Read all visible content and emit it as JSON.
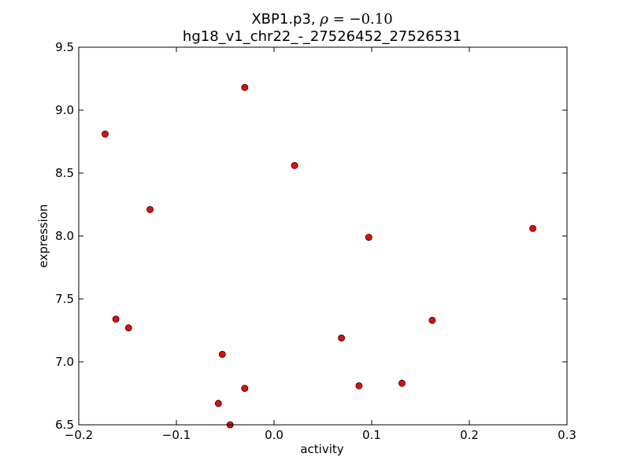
{
  "chart_data": {
    "type": "scatter",
    "title_main": "XBP1.p3, ",
    "title_rho_symbol": "ρ",
    "title_rho_value": " = −0.10",
    "subtitle": "hg18_v1_chr22_-_27526452_27526531",
    "xlabel": "activity",
    "ylabel": "expression",
    "xlim": [
      -0.2,
      0.3
    ],
    "ylim": [
      6.5,
      9.5
    ],
    "xticks": [
      {
        "value": -0.2,
        "label": "−0.2"
      },
      {
        "value": -0.1,
        "label": "−0.1"
      },
      {
        "value": 0.0,
        "label": "0.0"
      },
      {
        "value": 0.1,
        "label": "0.1"
      },
      {
        "value": 0.2,
        "label": "0.2"
      },
      {
        "value": 0.3,
        "label": "0.3"
      }
    ],
    "yticks": [
      {
        "value": 6.5,
        "label": "6.5"
      },
      {
        "value": 7.0,
        "label": "7.0"
      },
      {
        "value": 7.5,
        "label": "7.5"
      },
      {
        "value": 8.0,
        "label": "8.0"
      },
      {
        "value": 8.5,
        "label": "8.5"
      },
      {
        "value": 9.0,
        "label": "9.0"
      },
      {
        "value": 9.5,
        "label": "9.5"
      }
    ],
    "grid": false,
    "marker_color": "#ff0000",
    "marker_edge_color": "#000000",
    "points": [
      {
        "x": -0.173,
        "y": 8.81
      },
      {
        "x": -0.162,
        "y": 7.34
      },
      {
        "x": -0.149,
        "y": 7.27
      },
      {
        "x": -0.127,
        "y": 8.21
      },
      {
        "x": -0.057,
        "y": 6.67
      },
      {
        "x": -0.053,
        "y": 7.06
      },
      {
        "x": -0.045,
        "y": 6.5
      },
      {
        "x": -0.03,
        "y": 9.18
      },
      {
        "x": -0.03,
        "y": 6.79
      },
      {
        "x": 0.021,
        "y": 8.56
      },
      {
        "x": 0.069,
        "y": 7.19
      },
      {
        "x": 0.087,
        "y": 6.81
      },
      {
        "x": 0.097,
        "y": 7.99
      },
      {
        "x": 0.131,
        "y": 6.83
      },
      {
        "x": 0.162,
        "y": 7.33
      },
      {
        "x": 0.265,
        "y": 8.06
      }
    ]
  }
}
